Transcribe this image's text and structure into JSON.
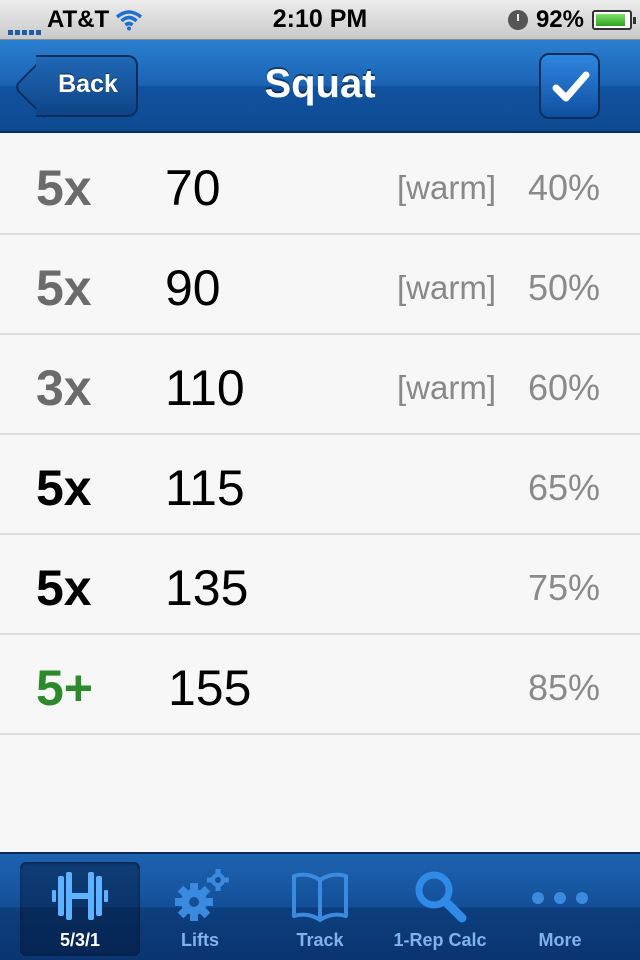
{
  "status_bar": {
    "carrier": "AT&T",
    "time": "2:10 PM",
    "battery": "92%",
    "battery_level": 0.92,
    "icons": [
      "signal-icon",
      "wifi-icon",
      "clock-icon",
      "battery-icon"
    ]
  },
  "nav": {
    "title": "Squat",
    "back_label": "Back",
    "done_icon": "checkmark-icon"
  },
  "sets": [
    {
      "reps": "5x",
      "weight": "70",
      "tag": "[warm]",
      "percent": "40%",
      "style": "warm"
    },
    {
      "reps": "5x",
      "weight": "90",
      "tag": "[warm]",
      "percent": "50%",
      "style": "warm"
    },
    {
      "reps": "3x",
      "weight": "110",
      "tag": "[warm]",
      "percent": "60%",
      "style": "warm"
    },
    {
      "reps": "5x",
      "weight": "115",
      "tag": "",
      "percent": "65%",
      "style": "work"
    },
    {
      "reps": "5x",
      "weight": "135",
      "tag": "",
      "percent": "75%",
      "style": "work"
    },
    {
      "reps": "5+",
      "weight": "155",
      "tag": "",
      "percent": "85%",
      "style": "amrap"
    }
  ],
  "tabs": [
    {
      "label": "5/3/1",
      "icon": "barbell-icon",
      "active": true
    },
    {
      "label": "Lifts",
      "icon": "gears-icon",
      "active": false
    },
    {
      "label": "Track",
      "icon": "book-icon",
      "active": false
    },
    {
      "label": "1-Rep Calc",
      "icon": "search-icon",
      "active": false
    },
    {
      "label": "More",
      "icon": "more-dots-icon",
      "active": false
    }
  ],
  "colors": {
    "nav_blue": "#1b63b3",
    "warm_text": "#6b6b6b",
    "amrap_green": "#2c8a2c",
    "tab_inactive": "#7fb3ec"
  }
}
